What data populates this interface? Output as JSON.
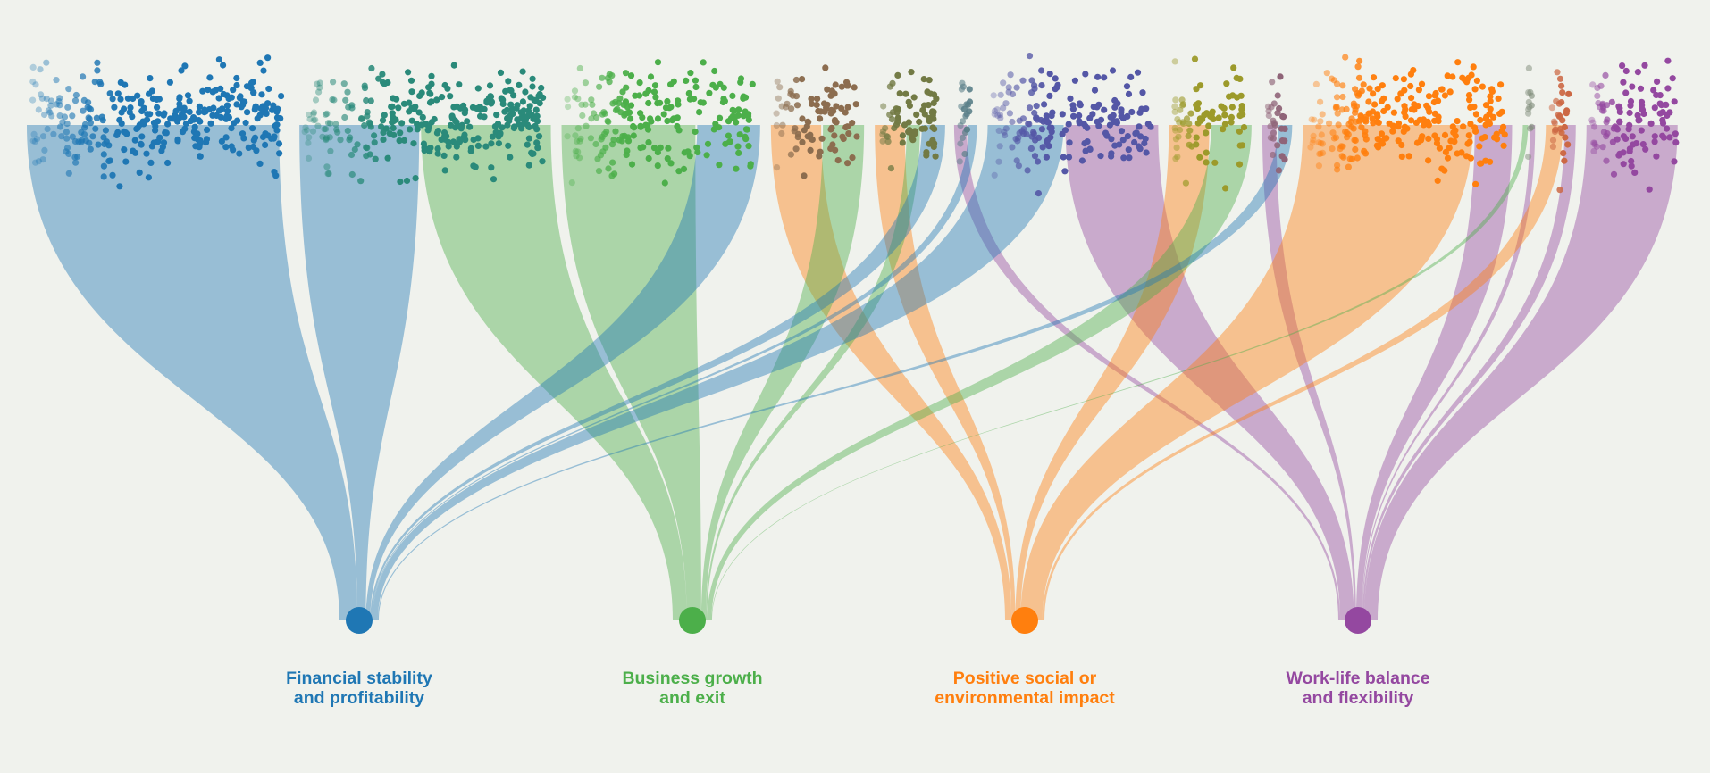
{
  "diagram": {
    "type": "flow-fan",
    "colors": {
      "background": "#f0f2ed",
      "blue": "#1f77b4",
      "teal": "#2a8a7a",
      "green": "#4caf4a",
      "brown": "#8c6d4f",
      "olive": "#727a44",
      "slate": "#5a7f88",
      "indigo": "#5457a6",
      "yellow_olive": "#9c9a2a",
      "mauve": "#8f6478",
      "orange": "#ff7f0e",
      "gray_green": "#7f8c7a",
      "rust": "#cc6844",
      "purple": "#9448a0"
    },
    "goals": [
      {
        "id": "financial",
        "line1": "Financial stability",
        "line2": "and profitability",
        "color": "#1f77b4",
        "share": 0.26
      },
      {
        "id": "growth",
        "line1": "Business growth",
        "line2": "and exit",
        "color": "#4caf4a",
        "share": 0.25
      },
      {
        "id": "impact",
        "line1": "Positive social or",
        "line2": "environmental impact",
        "color": "#ff7f0e",
        "share": 0.24
      },
      {
        "id": "balance",
        "line1": "Work-life balance",
        "line2": "and flexibility",
        "color": "#9448a0",
        "share": 0.25
      }
    ],
    "clusters": [
      {
        "id": "c1",
        "color": "#1f77b4",
        "share": 0.148,
        "flows": [
          {
            "goal": 0,
            "fraction": 0.97
          }
        ]
      },
      {
        "id": "c2",
        "color": "#2a8a7a",
        "share": 0.142,
        "flows": [
          {
            "goal": 0,
            "fraction": 0.48
          },
          {
            "goal": 1,
            "fraction": 0.52
          }
        ]
      },
      {
        "id": "c3",
        "color": "#4caf4a",
        "share": 0.112,
        "flows": [
          {
            "goal": 1,
            "fraction": 0.68
          },
          {
            "goal": 0,
            "fraction": 0.32
          }
        ]
      },
      {
        "id": "c4",
        "color": "#8c6d4f",
        "share": 0.052,
        "flows": [
          {
            "goal": 2,
            "fraction": 0.55
          },
          {
            "goal": 1,
            "fraction": 0.45
          }
        ]
      },
      {
        "id": "c5",
        "color": "#727a44",
        "share": 0.038,
        "flows": [
          {
            "goal": 2,
            "fraction": 0.45
          },
          {
            "goal": 1,
            "fraction": 0.2
          },
          {
            "goal": 0,
            "fraction": 0.35
          }
        ]
      },
      {
        "id": "c6",
        "color": "#5a7f88",
        "share": 0.012,
        "flows": [
          {
            "goal": 3,
            "fraction": 0.6
          },
          {
            "goal": 0,
            "fraction": 0.4
          }
        ]
      },
      {
        "id": "c7",
        "color": "#5457a6",
        "share": 0.096,
        "flows": [
          {
            "goal": 0,
            "fraction": 0.45
          },
          {
            "goal": 3,
            "fraction": 0.55
          }
        ]
      },
      {
        "id": "c8",
        "color": "#9c9a2a",
        "share": 0.046,
        "flows": [
          {
            "goal": 2,
            "fraction": 0.5
          },
          {
            "goal": 1,
            "fraction": 0.5
          }
        ]
      },
      {
        "id": "c9",
        "color": "#8f6478",
        "share": 0.016,
        "flows": [
          {
            "goal": 3,
            "fraction": 0.5
          },
          {
            "goal": 0,
            "fraction": 0.5
          }
        ]
      },
      {
        "id": "c10",
        "color": "#ff7f0e",
        "share": 0.118,
        "flows": [
          {
            "goal": 2,
            "fraction": 0.82
          },
          {
            "goal": 3,
            "fraction": 0.18
          }
        ]
      },
      {
        "id": "c11",
        "color": "#7f8c7a",
        "share": 0.006,
        "flows": [
          {
            "goal": 1,
            "fraction": 0.5
          },
          {
            "goal": 3,
            "fraction": 0.5
          }
        ]
      },
      {
        "id": "c12",
        "color": "#cc6844",
        "share": 0.016,
        "flows": [
          {
            "goal": 2,
            "fraction": 0.6
          },
          {
            "goal": 3,
            "fraction": 0.4
          }
        ]
      },
      {
        "id": "c13",
        "color": "#9448a0",
        "share": 0.054,
        "flows": [
          {
            "goal": 3,
            "fraction": 0.96
          }
        ]
      }
    ],
    "points_per_cluster": [
      320,
      300,
      210,
      90,
      70,
      22,
      180,
      80,
      28,
      260,
      12,
      30,
      110
    ]
  }
}
